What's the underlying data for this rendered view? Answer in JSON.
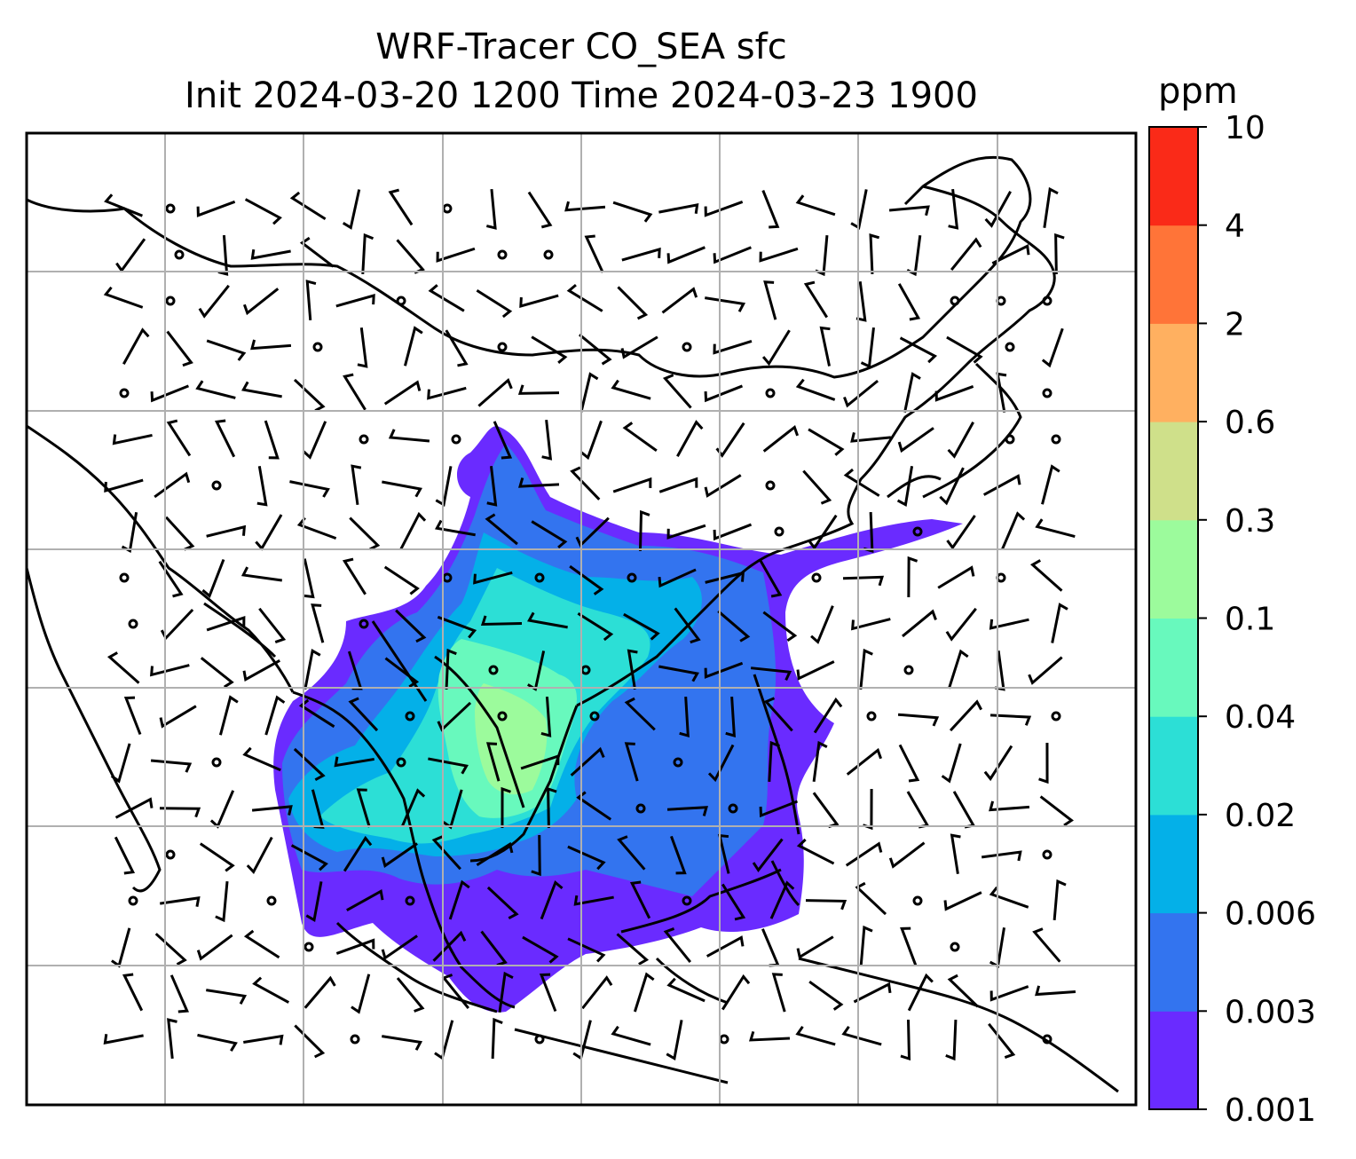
{
  "title_line1": "WRF-Tracer CO_SEA sfc",
  "title_line2": "Init 2024-03-20 1200 Time 2024-03-23 1900",
  "colorbar": {
    "unit": "ppm",
    "levels": [
      "0.001",
      "0.003",
      "0.006",
      "0.02",
      "0.04",
      "0.1",
      "0.3",
      "0.6",
      "2",
      "4",
      "10"
    ],
    "colors": [
      "#6a2bff",
      "#3374ef",
      "#04b0e8",
      "#2cdfd6",
      "#68f9bd",
      "#9cfb9c",
      "#cfe08a",
      "#ffb060",
      "#ff7438",
      "#fa2a18"
    ]
  },
  "map": {
    "frame_color": "#000000",
    "gridline_color": "#b0b0b0",
    "coastline_color": "#000000"
  }
}
